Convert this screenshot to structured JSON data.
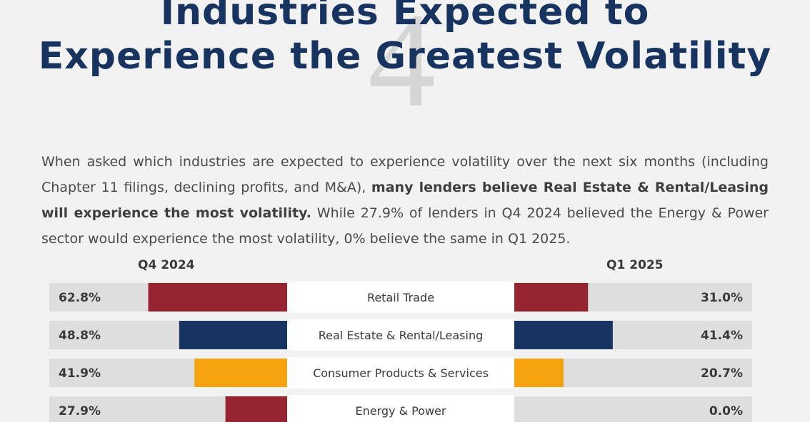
{
  "watermark": "4",
  "title": {
    "line1": "Industries Expected to",
    "line2": "Experience the Greatest Volatility"
  },
  "intro": {
    "part1": "When asked which industries are expected to experience volatility over the next six months (including Chapter 11 filings, declining profits, and M&A), ",
    "bold": "many lenders believe Real Estate & Rental/Leasing will experience the most volatility.",
    "part2": " While 27.9% of lenders in Q4 2024 believed the Energy & Power sector would experience the most volatility, 0% believe the same in Q1 2025."
  },
  "chart_data": {
    "type": "bar",
    "title": "",
    "series": [
      {
        "name": "Q4 2024",
        "values": [
          62.8,
          48.8,
          41.9,
          27.9
        ]
      },
      {
        "name": "Q1 2025",
        "values": [
          31.0,
          41.4,
          20.7,
          0.0
        ]
      }
    ],
    "categories": [
      "Retail Trade",
      "Real Estate & Rental/Leasing",
      "Consumer Products & Services",
      "Energy & Power"
    ],
    "value_labels_left": [
      "62.8%",
      "48.8%",
      "41.9%",
      "27.9%"
    ],
    "value_labels_right": [
      "31.0%",
      "41.4%",
      "20.7%",
      "0.0%"
    ],
    "colors": [
      "#962430",
      "#17335f",
      "#f4a30e",
      "#962430"
    ],
    "track_color": "#dedede",
    "ylim": [
      0,
      100
    ]
  }
}
